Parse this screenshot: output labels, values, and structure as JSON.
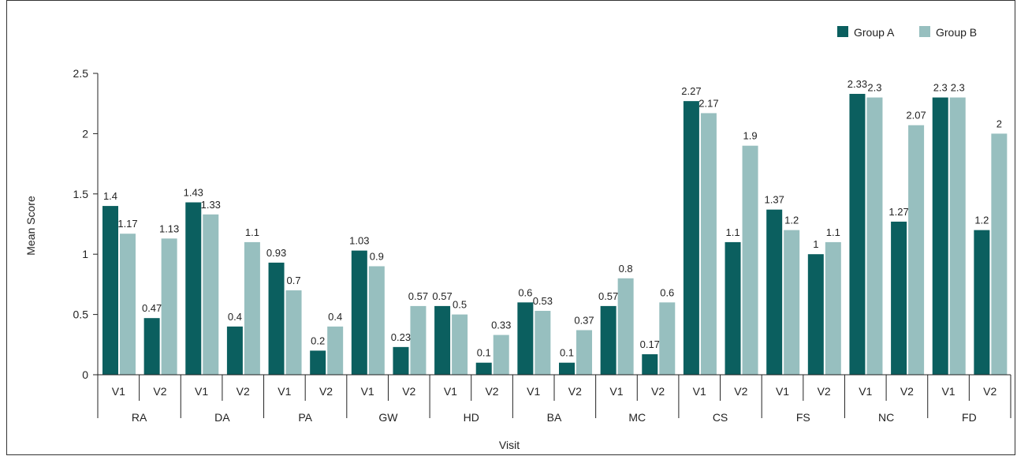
{
  "chart_data": {
    "type": "bar",
    "xlabel": "Visit",
    "ylabel": "Mean Score",
    "ylim": [
      0,
      2.5
    ],
    "yticks": [
      "0",
      "0.5",
      "1",
      "1.5",
      "2",
      "2.5"
    ],
    "legend_position": "top-right",
    "colors": {
      "Group A": "#0b5f5f",
      "Group B": "#97bfbf"
    },
    "groups": [
      "RA",
      "DA",
      "PA",
      "GW",
      "HD",
      "BA",
      "MC",
      "CS",
      "FS",
      "NC",
      "FD"
    ],
    "visits": [
      "V1",
      "V2"
    ],
    "categories": [
      "RA V1",
      "RA V2",
      "DA V1",
      "DA V2",
      "PA V1",
      "PA V2",
      "GW V1",
      "GW V2",
      "HD V1",
      "HD V2",
      "BA V1",
      "BA V2",
      "MC V1",
      "MC V2",
      "CS V1",
      "CS V2",
      "FS V1",
      "FS V2",
      "NC V1",
      "NC V2",
      "FD V1",
      "FD V2"
    ],
    "series": [
      {
        "name": "Group A",
        "values": [
          1.4,
          0.47,
          1.43,
          0.4,
          0.93,
          0.2,
          1.03,
          0.23,
          0.57,
          0.1,
          0.6,
          0.1,
          0.57,
          0.17,
          2.27,
          1.1,
          1.37,
          1,
          2.33,
          1.27,
          2.3,
          1.2
        ]
      },
      {
        "name": "Group B",
        "values": [
          1.17,
          1.13,
          1.33,
          1.1,
          0.7,
          0.4,
          0.9,
          0.57,
          0.5,
          0.33,
          0.53,
          0.37,
          0.8,
          0.6,
          2.17,
          1.9,
          1.2,
          1.1,
          2.3,
          2.07,
          2.3,
          2
        ]
      }
    ]
  }
}
